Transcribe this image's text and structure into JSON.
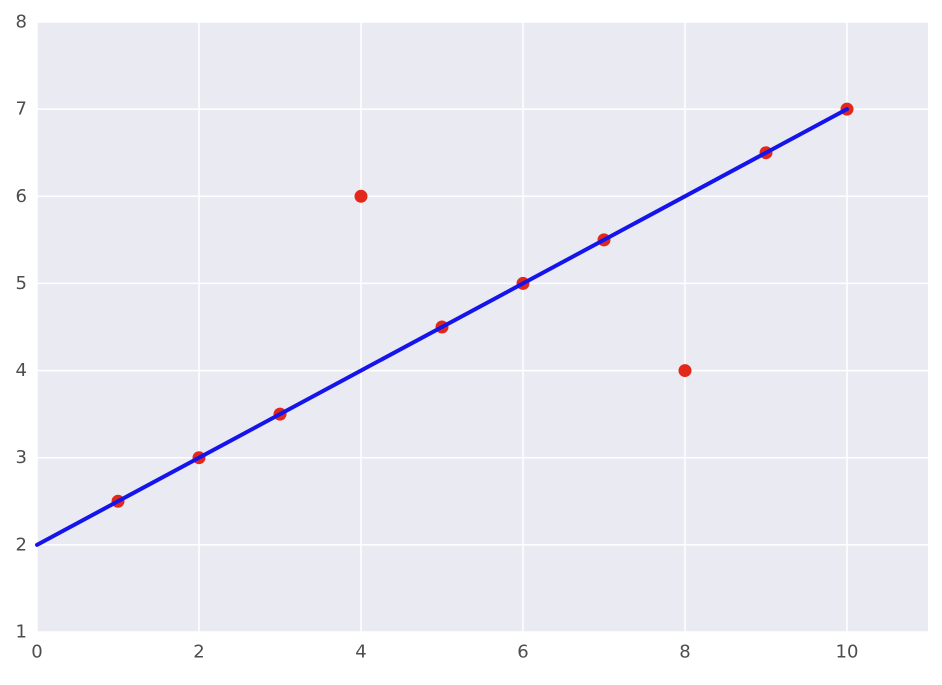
{
  "chart_data": {
    "type": "scatter",
    "title": "",
    "xlabel": "",
    "ylabel": "",
    "xlim": [
      0,
      11
    ],
    "ylim": [
      1,
      8
    ],
    "x_ticks": [
      0,
      2,
      4,
      6,
      8,
      10
    ],
    "y_ticks": [
      1,
      2,
      3,
      4,
      5,
      6,
      7,
      8
    ],
    "grid": true,
    "legend": "none",
    "plot_background": "#eaeaf2",
    "outer_background": "#ffffff",
    "grid_color": "#ffffff",
    "tick_label_color": "#4d4d4d",
    "series": [
      {
        "name": "scatter-points",
        "type": "scatter",
        "color": "#e3281b",
        "marker": "circle",
        "marker_radius": 6.5,
        "points": [
          [
            1,
            2.5
          ],
          [
            2,
            3
          ],
          [
            3,
            3.5
          ],
          [
            4,
            6
          ],
          [
            5,
            4.5
          ],
          [
            6,
            5
          ],
          [
            7,
            5.5
          ],
          [
            8,
            4
          ],
          [
            9,
            6.5
          ],
          [
            10,
            7
          ]
        ]
      },
      {
        "name": "regression-line",
        "type": "line",
        "color": "#1414eb",
        "width": 4,
        "points": [
          [
            0,
            2
          ],
          [
            10,
            7
          ]
        ]
      }
    ]
  }
}
